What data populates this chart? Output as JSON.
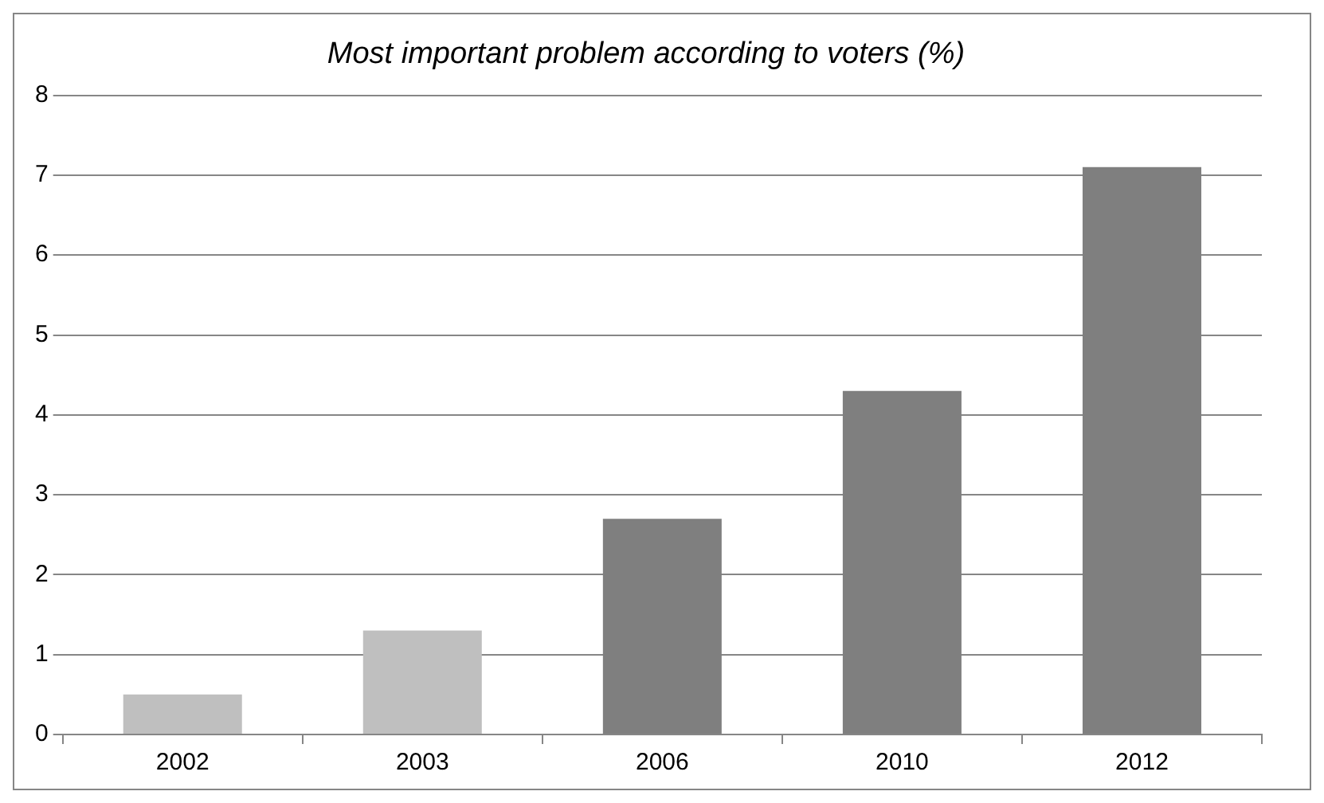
{
  "chart_data": {
    "type": "bar",
    "title": "Most important problem according to voters (%)",
    "categories": [
      "2002",
      "2003",
      "2006",
      "2010",
      "2012"
    ],
    "values": [
      0.5,
      1.3,
      2.7,
      4.3,
      7.1
    ],
    "colors": [
      "#bfbfbf",
      "#bfbfbf",
      "#7f7f7f",
      "#7f7f7f",
      "#7f7f7f"
    ],
    "ylim": [
      0,
      8
    ],
    "yticks": [
      0,
      1,
      2,
      3,
      4,
      5,
      6,
      7,
      8
    ],
    "grid": "y",
    "legend": false
  }
}
